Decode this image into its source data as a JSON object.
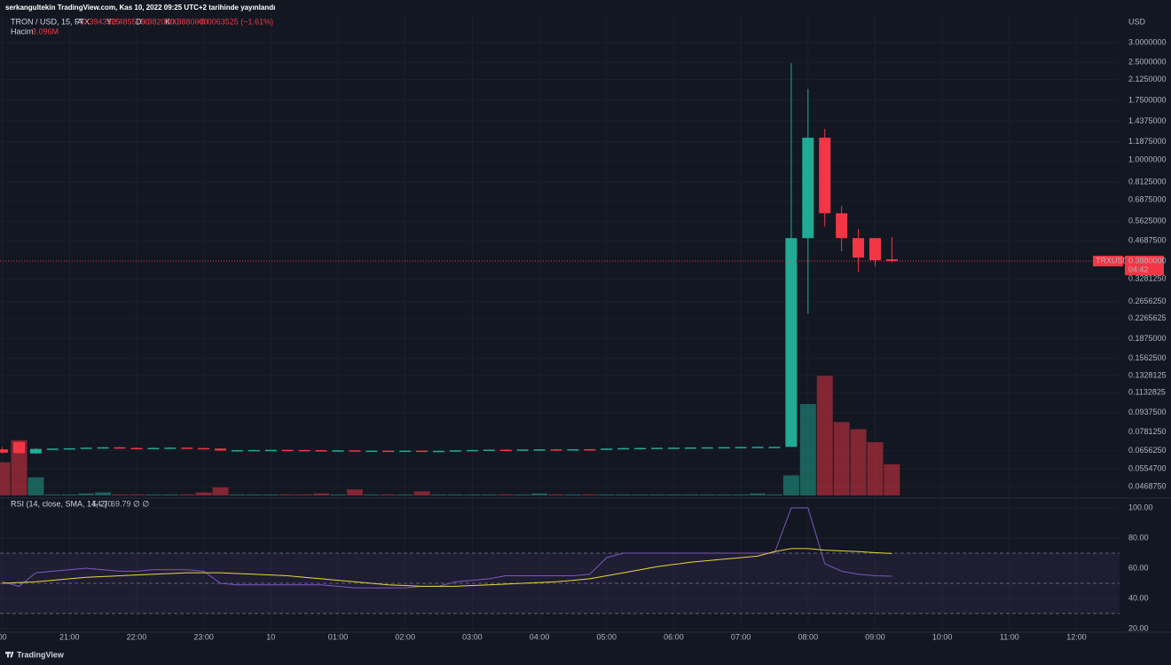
{
  "chart_data": {
    "type": "candlestick",
    "publisher": "serkangultekin TradingView.com, Kas 10, 2022 09:25 UTC+2 tarihinde yayınlandı",
    "symbol": "TRON / USD, 15, FTX",
    "ohlc_legend": [
      {
        "key": "A",
        "value": "0.3943525"
      },
      {
        "key": "Y",
        "value": "0.4855750"
      },
      {
        "key": "D",
        "value": "0.3820000"
      },
      {
        "key": "K",
        "value": "0.3880000"
      }
    ],
    "change": "−0.0063525 (−1.61%)",
    "volume_label": "Hacim",
    "volume_value": "3.096M",
    "currency": "USD",
    "price_tag": {
      "symbol": "TRXUSD",
      "price": {
        "value": 0.388,
        "label": "0.3880000"
      },
      "countdown": "04:42"
    },
    "up_color": "#22ab94",
    "down_color": "#f23645",
    "log_scale": true,
    "grid": true,
    "xlim": [
      19.966,
      36.64
    ],
    "xticks": [
      {
        "value": 20,
        "label": "00"
      },
      {
        "value": 21,
        "label": "21:00"
      },
      {
        "value": 22,
        "label": "22:00"
      },
      {
        "value": 23,
        "label": "23:00"
      },
      {
        "value": 24,
        "label": "10"
      },
      {
        "value": 25,
        "label": "01:00"
      },
      {
        "value": 26,
        "label": "02:00"
      },
      {
        "value": 27,
        "label": "03:00"
      },
      {
        "value": 28,
        "label": "04:00"
      },
      {
        "value": 29,
        "label": "05:00"
      },
      {
        "value": 30,
        "label": "06:00"
      },
      {
        "value": 31,
        "label": "07:00"
      },
      {
        "value": 32,
        "label": "08:00"
      },
      {
        "value": 33,
        "label": "09:00"
      },
      {
        "value": 34,
        "label": "10:00"
      },
      {
        "value": 35,
        "label": "11:00"
      },
      {
        "value": 36,
        "label": "12:00"
      }
    ],
    "ylim": [
      0.0432,
      3.95
    ],
    "yticks": [
      {
        "value": 3.0,
        "label": "3.0000000"
      },
      {
        "value": 2.5,
        "label": "2.5000000"
      },
      {
        "value": 2.125,
        "label": "2.1250000"
      },
      {
        "value": 1.75,
        "label": "1.7500000"
      },
      {
        "value": 1.4375,
        "label": "1.4375000"
      },
      {
        "value": 1.1875,
        "label": "1.1875000"
      },
      {
        "value": 1.0,
        "label": "1.0000000"
      },
      {
        "value": 0.8125,
        "label": "0.8125000"
      },
      {
        "value": 0.6875,
        "label": "0.6875000"
      },
      {
        "value": 0.5625,
        "label": "0.5625000"
      },
      {
        "value": 0.46875,
        "label": "0.4687500"
      },
      {
        "value": 0.328125,
        "label": "0.3281250"
      },
      {
        "value": 0.265625,
        "label": "0.2656250"
      },
      {
        "value": 0.2265625,
        "label": "0.2265625"
      },
      {
        "value": 0.1875,
        "label": "0.1875000"
      },
      {
        "value": 0.15625,
        "label": "0.1562500"
      },
      {
        "value": 0.1328125,
        "label": "0.1328125"
      },
      {
        "value": 0.1132825,
        "label": "0.1132825"
      },
      {
        "value": 0.09375,
        "label": "0.0937500"
      },
      {
        "value": 0.078125,
        "label": "0.0781250"
      },
      {
        "value": 0.065625,
        "label": "0.0656250"
      },
      {
        "value": 0.05547,
        "label": "0.0554700"
      },
      {
        "value": 0.046875,
        "label": "0.0468750"
      }
    ],
    "x": [
      20,
      20.25,
      20.5,
      20.75,
      21,
      21.25,
      21.5,
      21.75,
      22,
      22.25,
      22.5,
      22.75,
      23,
      23.25,
      23.5,
      23.75,
      24,
      24.25,
      24.5,
      24.75,
      25,
      25.25,
      25.5,
      25.75,
      26,
      26.25,
      26.5,
      26.75,
      27,
      27.25,
      27.5,
      27.75,
      28,
      28.25,
      28.5,
      28.75,
      29,
      29.25,
      29.5,
      29.75,
      30,
      30.25,
      30.5,
      30.75,
      31,
      31.25,
      31.5,
      31.75,
      32,
      32.25,
      32.5,
      32.75,
      33,
      33.25
    ],
    "candles": [
      [
        0.0665,
        0.068,
        0.064,
        0.0645
      ],
      [
        0.0712,
        0.0718,
        0.0638,
        0.0642
      ],
      [
        0.064,
        0.0672,
        0.0638,
        0.0668
      ],
      [
        0.0668,
        0.0672,
        0.0664,
        0.067
      ],
      [
        0.067,
        0.0674,
        0.0667,
        0.0672
      ],
      [
        0.0672,
        0.0678,
        0.067,
        0.0676
      ],
      [
        0.0676,
        0.068,
        0.0673,
        0.0678
      ],
      [
        0.0678,
        0.0681,
        0.0672,
        0.0674
      ],
      [
        0.0674,
        0.0677,
        0.067,
        0.0672
      ],
      [
        0.0672,
        0.0676,
        0.067,
        0.0674
      ],
      [
        0.0674,
        0.0678,
        0.0672,
        0.0676
      ],
      [
        0.0676,
        0.0678,
        0.0672,
        0.0673
      ],
      [
        0.0673,
        0.0675,
        0.0668,
        0.067
      ],
      [
        0.067,
        0.0671,
        0.0655,
        0.0658
      ],
      [
        0.0658,
        0.0662,
        0.0656,
        0.066
      ],
      [
        0.066,
        0.0662,
        0.0658,
        0.0661
      ],
      [
        0.0661,
        0.0663,
        0.0659,
        0.0662
      ],
      [
        0.0662,
        0.0664,
        0.066,
        0.0661
      ],
      [
        0.0661,
        0.0663,
        0.0659,
        0.066
      ],
      [
        0.066,
        0.0662,
        0.0657,
        0.0658
      ],
      [
        0.0658,
        0.0661,
        0.0656,
        0.0659
      ],
      [
        0.0659,
        0.066,
        0.0654,
        0.0656
      ],
      [
        0.0656,
        0.0658,
        0.0654,
        0.0657
      ],
      [
        0.0657,
        0.0659,
        0.0655,
        0.0656
      ],
      [
        0.0656,
        0.0658,
        0.0654,
        0.0657
      ],
      [
        0.0657,
        0.0658,
        0.0652,
        0.0654
      ],
      [
        0.0654,
        0.0657,
        0.0653,
        0.0656
      ],
      [
        0.0656,
        0.066,
        0.0655,
        0.0659
      ],
      [
        0.0659,
        0.0662,
        0.0657,
        0.0661
      ],
      [
        0.0661,
        0.0664,
        0.0659,
        0.0663
      ],
      [
        0.0663,
        0.0665,
        0.0661,
        0.0662
      ],
      [
        0.0662,
        0.0665,
        0.0661,
        0.0664
      ],
      [
        0.0664,
        0.0666,
        0.0662,
        0.0665
      ],
      [
        0.0665,
        0.0667,
        0.0663,
        0.0664
      ],
      [
        0.0664,
        0.0667,
        0.0663,
        0.0666
      ],
      [
        0.0666,
        0.0668,
        0.0664,
        0.0665
      ],
      [
        0.0662,
        0.0672,
        0.066,
        0.067
      ],
      [
        0.067,
        0.0674,
        0.0669,
        0.0673
      ],
      [
        0.0673,
        0.0675,
        0.0671,
        0.0674
      ],
      [
        0.0674,
        0.0676,
        0.0672,
        0.0675
      ],
      [
        0.0675,
        0.0677,
        0.0673,
        0.0676
      ],
      [
        0.0676,
        0.0678,
        0.0674,
        0.0677
      ],
      [
        0.0677,
        0.0679,
        0.0675,
        0.0678
      ],
      [
        0.0678,
        0.068,
        0.0676,
        0.0679
      ],
      [
        0.0679,
        0.0681,
        0.0677,
        0.068
      ],
      [
        0.068,
        0.0682,
        0.0678,
        0.0681
      ],
      [
        0.0681,
        0.0683,
        0.0679,
        0.0681
      ],
      [
        0.0681,
        2.478,
        0.068,
        0.481
      ],
      [
        0.481,
        1.946,
        0.237,
        1.232
      ],
      [
        1.232,
        1.339,
        0.536,
        0.607
      ],
      [
        0.607,
        0.649,
        0.425,
        0.481
      ],
      [
        0.481,
        0.523,
        0.351,
        0.401
      ],
      [
        0.481,
        0.481,
        0.369,
        0.391
      ],
      [
        0.3943525,
        0.485575,
        0.382,
        0.388
      ]
    ],
    "volume_ylim": [
      0,
      48
    ],
    "volume": [
      3.3,
      5.5,
      1.8,
      0.1,
      0.1,
      0.2,
      0.3,
      0.1,
      0.1,
      0.1,
      0.1,
      0.1,
      0.3,
      0.8,
      0.1,
      0.1,
      0.1,
      0.1,
      0.1,
      0.2,
      0.1,
      0.6,
      0.1,
      0.1,
      0.1,
      0.4,
      0.1,
      0.1,
      0.1,
      0.1,
      0.1,
      0.1,
      0.2,
      0.1,
      0.1,
      0.1,
      0.1,
      0.1,
      0.1,
      0.1,
      0.1,
      0.1,
      0.1,
      0.1,
      0.1,
      0.2,
      0.1,
      2.0,
      9.1,
      11.9,
      7.3,
      6.6,
      5.3,
      3.096
    ],
    "rsi_title": "RSI (14, close, SMA, 14, 2)",
    "rsi_value": "54.70",
    "rsi_sma_value": "69.79",
    "rsi_extra": "∅ ∅",
    "rsi_ylim": [
      20,
      100
    ],
    "rsi_yticks": [
      {
        "value": 100,
        "label": "100.00"
      },
      {
        "value": 80,
        "label": "80.00"
      },
      {
        "value": 60,
        "label": "60.00"
      },
      {
        "value": 40,
        "label": "40.00"
      },
      {
        "value": 20,
        "label": "20.00"
      }
    ],
    "rsi_band": [
      30,
      70
    ],
    "rsi_mid": 50,
    "rsi_color": "#7e57c2",
    "rsi_sma_color": "#e6d83c",
    "rsi": [
      51,
      48,
      57,
      58,
      59,
      60,
      59,
      58,
      58,
      59,
      59,
      59,
      58,
      50,
      49,
      49,
      49,
      49,
      49,
      49,
      48,
      47,
      47,
      47,
      47,
      48,
      48,
      51,
      52,
      53,
      55,
      55,
      55,
      55,
      55,
      56,
      67,
      70,
      70,
      70,
      70,
      70,
      70,
      70,
      70,
      70,
      70,
      100,
      100,
      63,
      58,
      56,
      55,
      54.7
    ],
    "rsi_sma": [
      50,
      50.5,
      51,
      52,
      53,
      54,
      54.5,
      55,
      55.5,
      56,
      56.5,
      57,
      57,
      57,
      56.5,
      56,
      55.5,
      55,
      54,
      53,
      52,
      51,
      50,
      49,
      48.5,
      48,
      48,
      48,
      48.5,
      49,
      49.5,
      50,
      50.5,
      51,
      52,
      53,
      55,
      57,
      59,
      61,
      62.5,
      64,
      65,
      66,
      67,
      68,
      71,
      73,
      73,
      72,
      71.5,
      71,
      70.3,
      69.79
    ],
    "brand": "TradingView"
  }
}
